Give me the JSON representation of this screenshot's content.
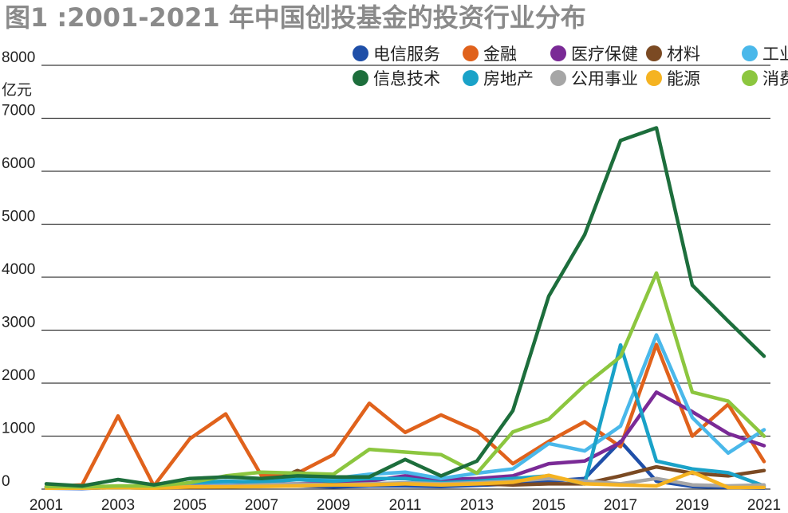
{
  "title": "图1 :2001-2021 年中国创投基金的投资行业分布",
  "chart_data": {
    "type": "line",
    "title": "图1 :2001-2021 年中国创投基金的投资行业分布",
    "ylabel": "亿元",
    "xlabel": "",
    "ylim": [
      0,
      8000
    ],
    "yticks": [
      0,
      1000,
      2000,
      3000,
      4000,
      5000,
      6000,
      7000,
      8000
    ],
    "xtick_labels": [
      "2001",
      "2003",
      "2005",
      "2007",
      "2009",
      "2011",
      "2013",
      "2015",
      "2017",
      "2019",
      "2021"
    ],
    "grid": "horizontal",
    "legend_position": "top-right",
    "x": [
      2001,
      2002,
      2003,
      2004,
      2005,
      2006,
      2007,
      2008,
      2009,
      2010,
      2011,
      2012,
      2013,
      2014,
      2015,
      2016,
      2017,
      2018,
      2019,
      2020,
      2021
    ],
    "series": [
      {
        "name": "电信服务",
        "color": "#1f4fa8",
        "values": [
          20,
          10,
          40,
          20,
          50,
          60,
          60,
          60,
          40,
          60,
          60,
          50,
          70,
          100,
          150,
          200,
          900,
          150,
          50,
          30,
          20
        ]
      },
      {
        "name": "金融",
        "color": "#e0621c",
        "values": [
          50,
          80,
          1380,
          60,
          950,
          1420,
          250,
          300,
          650,
          1620,
          1070,
          1400,
          1100,
          480,
          900,
          1270,
          800,
          2730,
          1000,
          1600,
          520
        ]
      },
      {
        "name": "医疗保健",
        "color": "#7a2a96",
        "values": [
          30,
          20,
          40,
          30,
          60,
          80,
          90,
          100,
          120,
          150,
          250,
          180,
          200,
          250,
          480,
          530,
          880,
          1830,
          1460,
          1050,
          820
        ]
      },
      {
        "name": "材料",
        "color": "#7b4a23",
        "values": [
          20,
          20,
          30,
          20,
          30,
          40,
          60,
          350,
          80,
          100,
          100,
          90,
          100,
          80,
          100,
          100,
          250,
          420,
          300,
          250,
          350
        ]
      },
      {
        "name": "工业",
        "color": "#4ab8ea",
        "values": [
          40,
          30,
          50,
          40,
          120,
          130,
          150,
          200,
          200,
          280,
          320,
          200,
          300,
          380,
          860,
          720,
          1190,
          2910,
          1350,
          680,
          1120
        ]
      },
      {
        "name": "信息技术",
        "color": "#1d6e3c",
        "values": [
          100,
          60,
          180,
          80,
          200,
          230,
          200,
          250,
          230,
          230,
          560,
          250,
          530,
          1480,
          3640,
          4800,
          6580,
          6820,
          3850,
          3170,
          2510
        ]
      },
      {
        "name": "房地产",
        "color": "#1aa2c8",
        "values": [
          30,
          20,
          50,
          30,
          120,
          150,
          130,
          180,
          150,
          200,
          200,
          120,
          150,
          200,
          250,
          100,
          2720,
          530,
          380,
          310,
          60
        ]
      },
      {
        "name": "公用事业",
        "color": "#a6a6a6",
        "values": [
          20,
          20,
          30,
          20,
          50,
          60,
          80,
          100,
          80,
          100,
          120,
          100,
          120,
          150,
          200,
          150,
          100,
          200,
          80,
          60,
          80
        ]
      },
      {
        "name": "能源",
        "color": "#f5b321",
        "values": [
          20,
          20,
          30,
          20,
          40,
          40,
          50,
          60,
          80,
          80,
          100,
          80,
          100,
          130,
          260,
          100,
          80,
          60,
          320,
          30,
          30
        ]
      },
      {
        "name": "消费",
        "color": "#8cc63f",
        "values": [
          50,
          40,
          60,
          60,
          120,
          250,
          320,
          300,
          280,
          750,
          700,
          650,
          300,
          1080,
          1320,
          1960,
          2500,
          4080,
          1830,
          1660,
          1000
        ]
      }
    ]
  }
}
